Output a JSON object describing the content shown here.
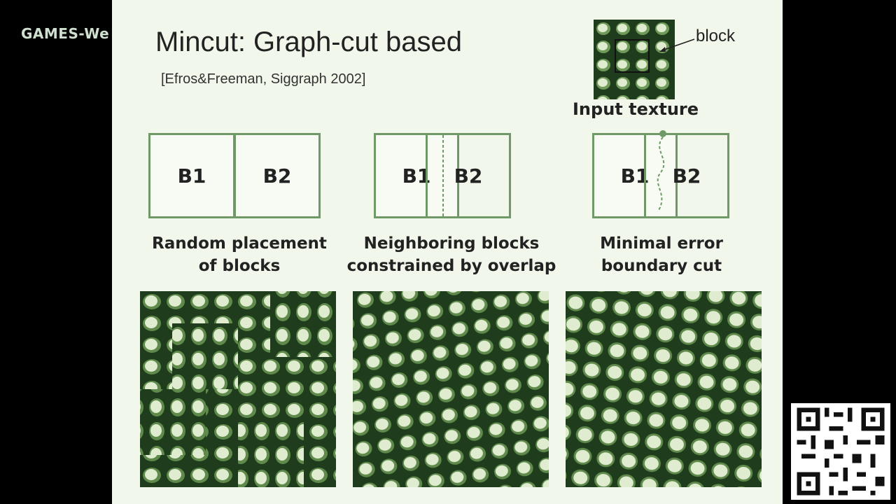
{
  "watermark": "GAMES-We",
  "title": "Mincut: Graph-cut based",
  "citation": "[Efros&Freeman, Siggraph 2002]",
  "block_label": "block",
  "input_caption": "Input texture",
  "diagrams": [
    {
      "b1": "B1",
      "b2": "B2",
      "caption_line1": "Random placement",
      "caption_line2": "of blocks"
    },
    {
      "b1": "B1",
      "b2": "B2",
      "caption_line1": "Neighboring blocks",
      "caption_line2": "constrained by overlap"
    },
    {
      "b1": "B1",
      "b2": "B2",
      "caption_line1": "Minimal error",
      "caption_line2": "boundary cut"
    }
  ],
  "colors": {
    "slide_bg": "#f1f7ea",
    "box_border": "#6f9a68",
    "texture_dark": "#1f3d1c",
    "texture_light": "#dfeccf"
  },
  "icons": {
    "qr": "qr-code"
  }
}
